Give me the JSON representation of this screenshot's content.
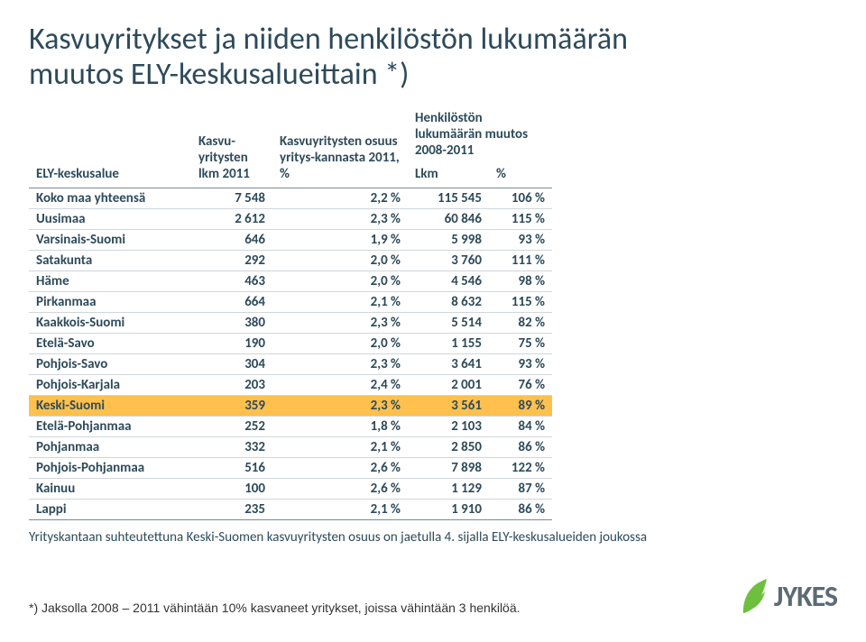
{
  "title_line1": "Kasvuyritykset ja niiden henkilöstön lukumäärän",
  "title_line2": "muutos ELY-keskusalueittain *)",
  "table": {
    "header": {
      "col1": "ELY-keskusalue",
      "col2": "Kasvu-yritysten lkm 2011",
      "col3": "Kasvuyritysten osuus yritys-kannasta 2011, %",
      "col4_group": "Henkilöstön lukumäärän muutos 2008-2011",
      "col4a": "Lkm",
      "col4b": "%"
    },
    "rows": [
      {
        "name": "Koko maa yhteensä",
        "lkm": "7 548",
        "share": "2,2 %",
        "hlkm": "115 545",
        "hpct": "106 %",
        "total": true
      },
      {
        "name": "Uusimaa",
        "lkm": "2 612",
        "share": "2,3 %",
        "hlkm": "60 846",
        "hpct": "115 %"
      },
      {
        "name": "Varsinais-Suomi",
        "lkm": "646",
        "share": "1,9 %",
        "hlkm": "5 998",
        "hpct": "93 %"
      },
      {
        "name": "Satakunta",
        "lkm": "292",
        "share": "2,0 %",
        "hlkm": "3 760",
        "hpct": "111 %"
      },
      {
        "name": "Häme",
        "lkm": "463",
        "share": "2,0 %",
        "hlkm": "4 546",
        "hpct": "98 %"
      },
      {
        "name": "Pirkanmaa",
        "lkm": "664",
        "share": "2,1 %",
        "hlkm": "8 632",
        "hpct": "115 %"
      },
      {
        "name": "Kaakkois-Suomi",
        "lkm": "380",
        "share": "2,3 %",
        "hlkm": "5 514",
        "hpct": "82 %"
      },
      {
        "name": "Etelä-Savo",
        "lkm": "190",
        "share": "2,0 %",
        "hlkm": "1 155",
        "hpct": "75 %"
      },
      {
        "name": "Pohjois-Savo",
        "lkm": "304",
        "share": "2,3 %",
        "hlkm": "3 641",
        "hpct": "93 %"
      },
      {
        "name": "Pohjois-Karjala",
        "lkm": "203",
        "share": "2,4 %",
        "hlkm": "2 001",
        "hpct": "76 %"
      },
      {
        "name": "Keski-Suomi",
        "lkm": "359",
        "share": "2,3 %",
        "hlkm": "3 561",
        "hpct": "89 %",
        "highlight": true
      },
      {
        "name": "Etelä-Pohjanmaa",
        "lkm": "252",
        "share": "1,8 %",
        "hlkm": "2 103",
        "hpct": "84 %"
      },
      {
        "name": "Pohjanmaa",
        "lkm": "332",
        "share": "2,1 %",
        "hlkm": "2 850",
        "hpct": "86 %"
      },
      {
        "name": "Pohjois-Pohjanmaa",
        "lkm": "516",
        "share": "2,6 %",
        "hlkm": "7 898",
        "hpct": "122 %"
      },
      {
        "name": "Kainuu",
        "lkm": "100",
        "share": "2,6 %",
        "hlkm": "1 129",
        "hpct": "87 %"
      },
      {
        "name": "Lappi",
        "lkm": "235",
        "share": "2,1 %",
        "hlkm": "1 910",
        "hpct": "86 %"
      }
    ],
    "footnote": "Yrityskantaan suhteutettuna Keski-Suomen kasvuyritysten osuus on jaetulla 4. sijalla ELY-keskusalueiden joukossa"
  },
  "caption": "*) Jaksolla 2008 – 2011 vähintään 10% kasvaneet yritykset, joissa vähintään 3 henkilöä.",
  "logo_text": "JYKES",
  "colors": {
    "text": "#2d4a5a",
    "highlight_bg": "#ffc04d",
    "border": "#7a8a94",
    "row_border": "#cfd6da",
    "logo_green": "#6fbf3f",
    "logo_text": "#5b6b75"
  }
}
